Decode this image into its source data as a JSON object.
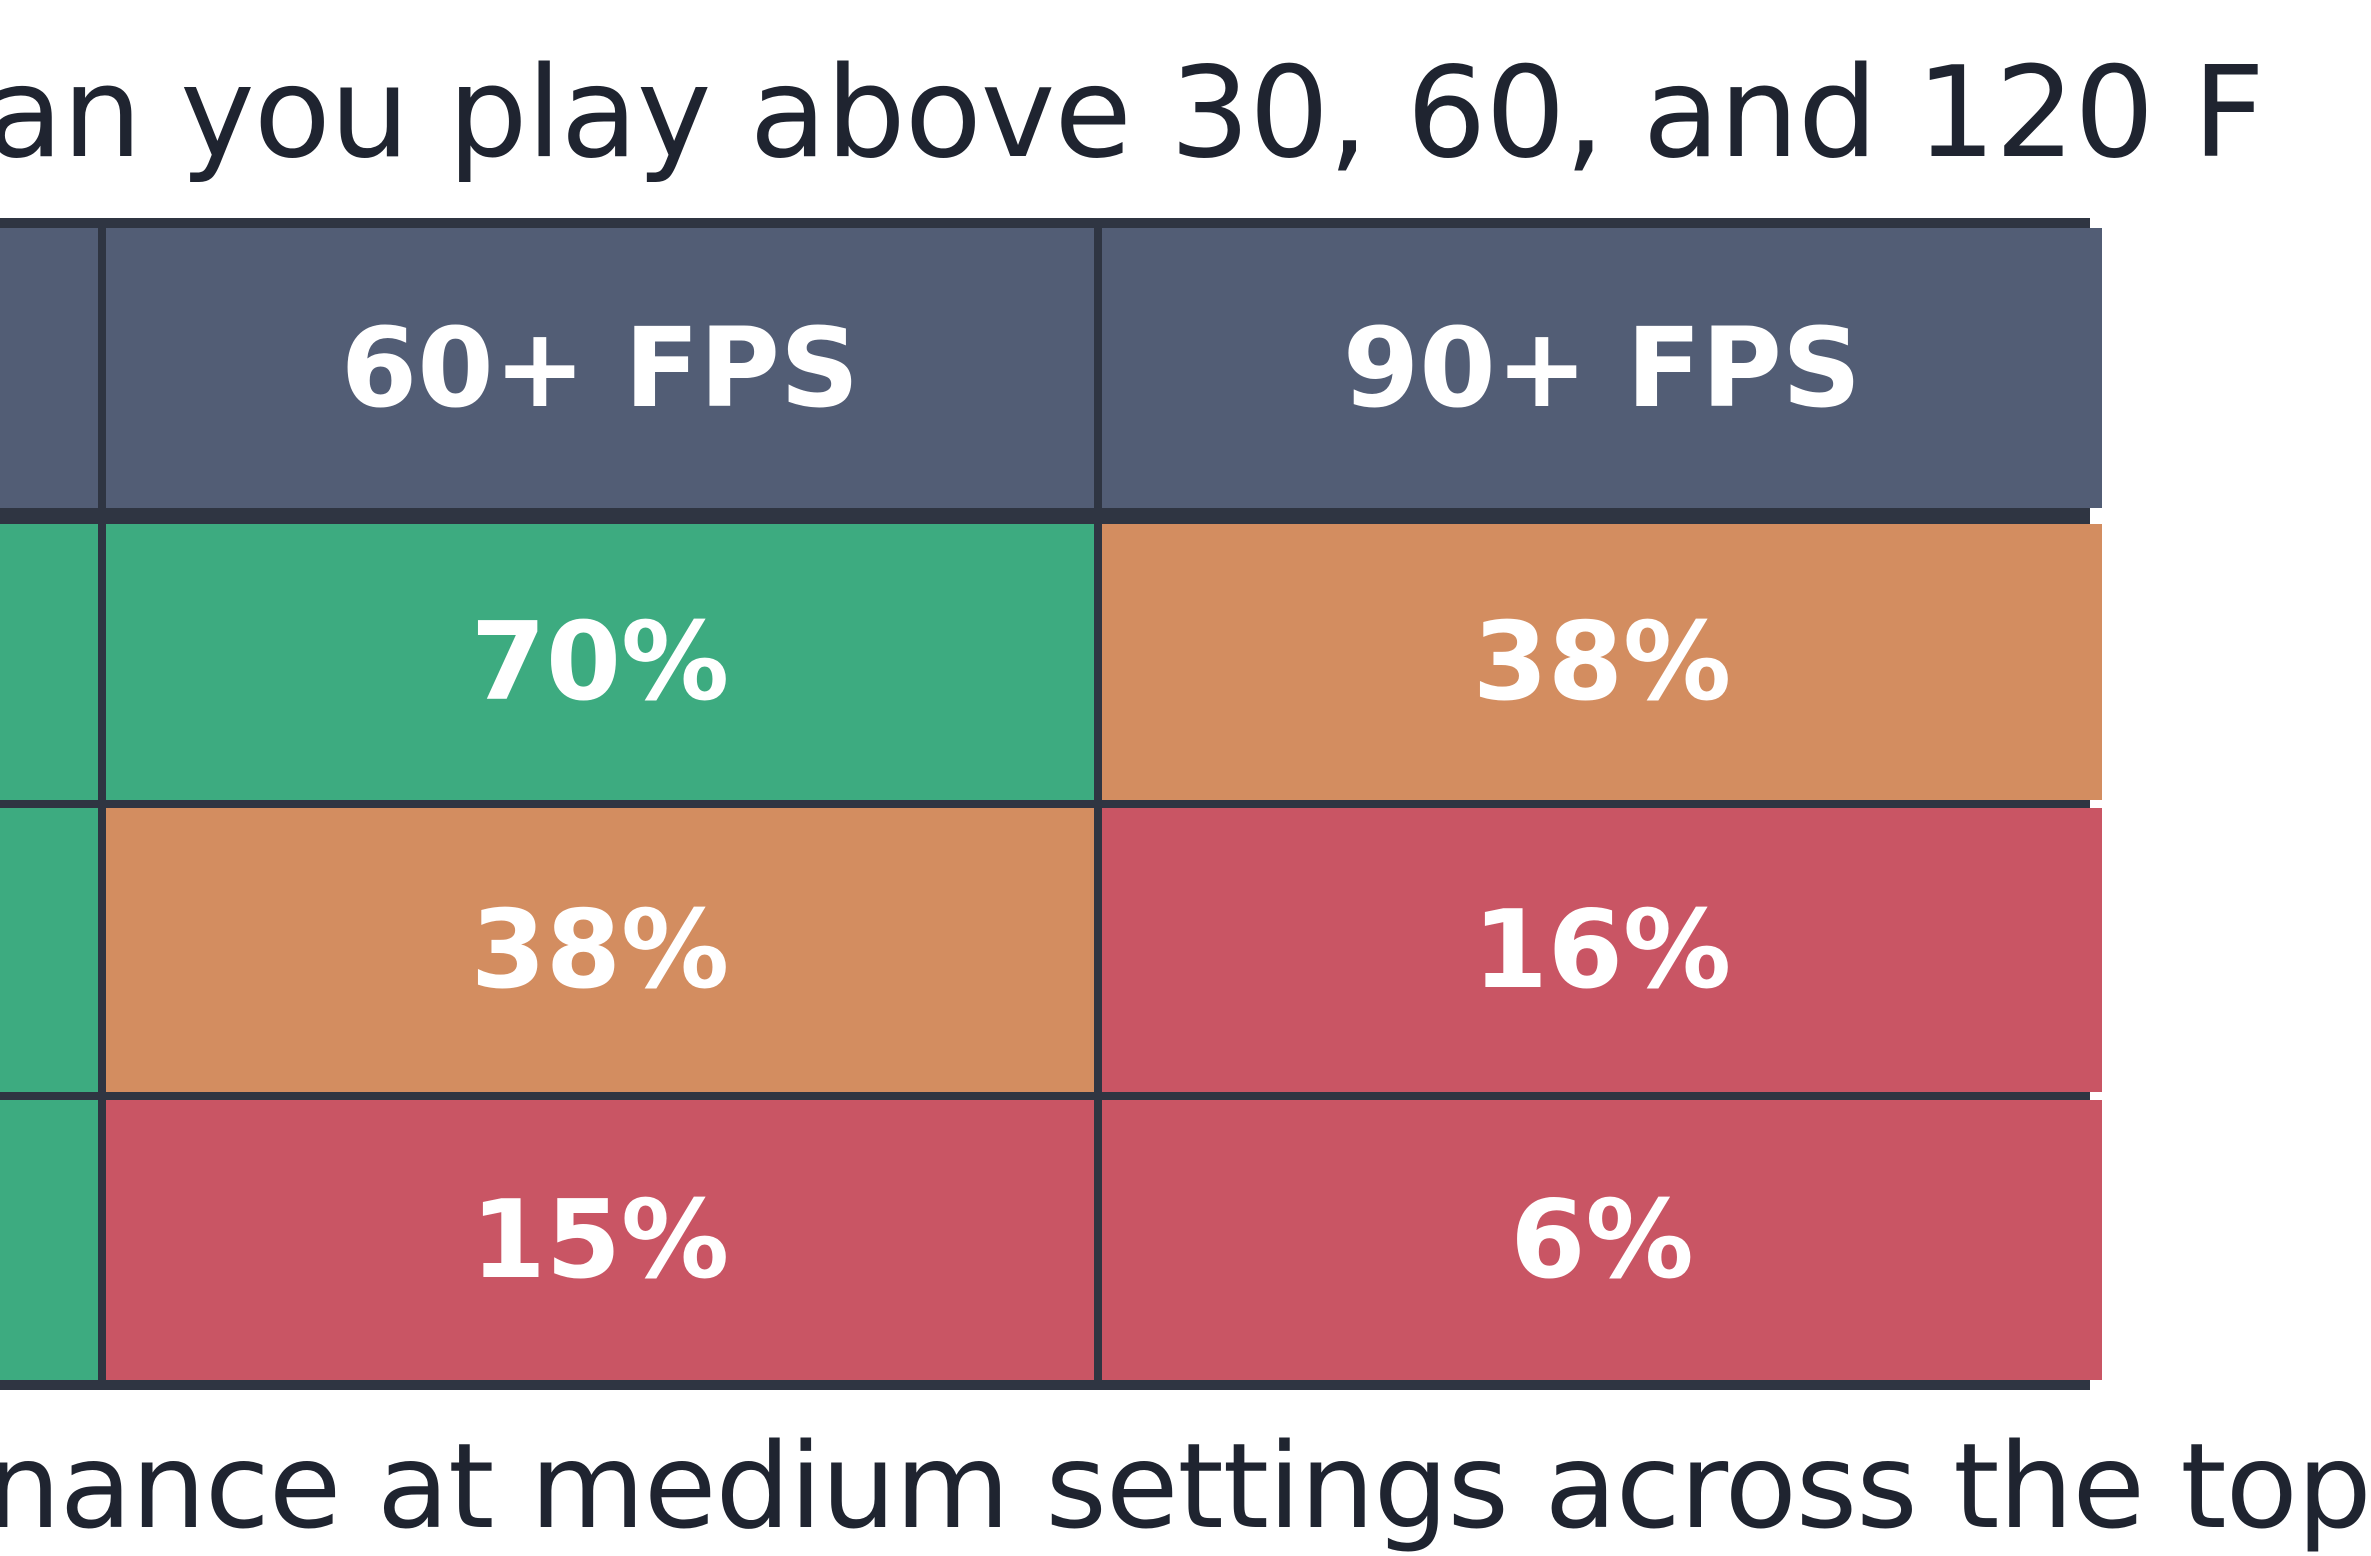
{
  "heading": "an you play above 30, 60, and 120 F",
  "table": {
    "headers": [
      "",
      "60+ FPS",
      "90+ FPS"
    ],
    "rows": [
      {
        "cells": [
          "",
          "70%",
          "38%"
        ],
        "colors": [
          "#3dab80",
          "#3dab80",
          "#d38d60"
        ]
      },
      {
        "cells": [
          "",
          "38%",
          "16%"
        ],
        "colors": [
          "#3dab80",
          "#d38d60",
          "#c95564"
        ]
      },
      {
        "cells": [
          "",
          "15%",
          "6%"
        ],
        "colors": [
          "#3dab80",
          "#c95564",
          "#c95564"
        ]
      }
    ]
  },
  "footer": "nance at medium settings across the top",
  "colors": {
    "header_bg": "#525d75",
    "border": "#2f3542",
    "good": "#3dab80",
    "ok": "#d38d60",
    "bad": "#c95564"
  }
}
